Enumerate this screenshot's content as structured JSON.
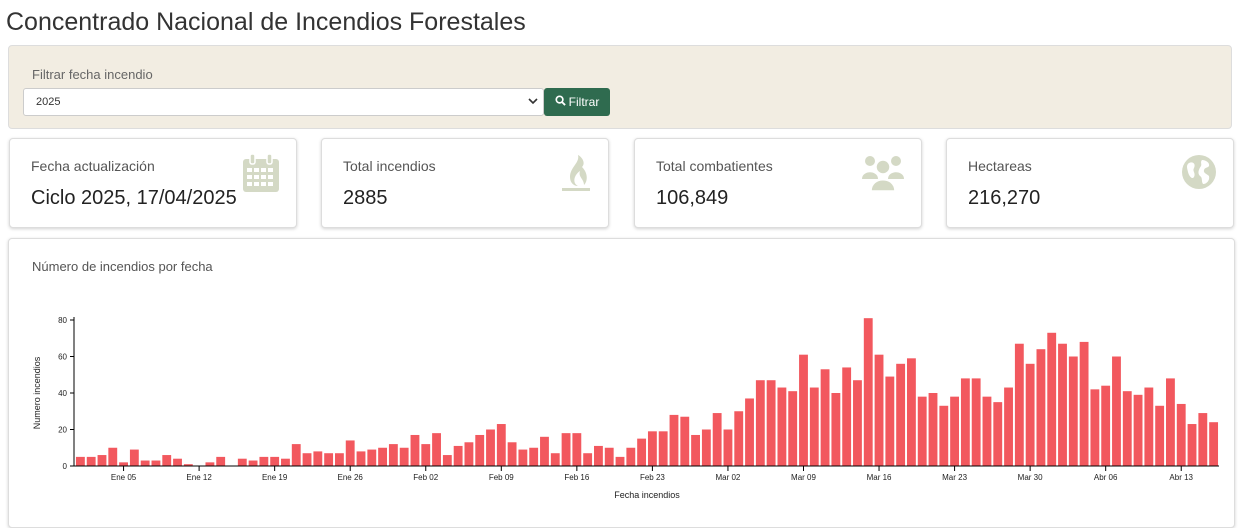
{
  "header": {
    "title": "Concentrado Nacional de Incendios Forestales"
  },
  "filter": {
    "label": "Filtrar fecha incendio",
    "selected_year": "2025",
    "button_label": "Filtrar"
  },
  "cards": [
    {
      "label": "Fecha actualización",
      "value": "Ciclo 2025, 17/04/2025",
      "icon": "calendar-icon"
    },
    {
      "label": "Total incendios",
      "value": "2885",
      "icon": "flame-icon"
    },
    {
      "label": "Total combatientes",
      "value": "106,849",
      "icon": "people-icon"
    },
    {
      "label": "Hectareas",
      "value": "216,270",
      "icon": "globe-icon"
    }
  ],
  "colors": {
    "bar": "#f2585e",
    "icon": "#d4d9c5",
    "button": "#2f6b4f",
    "panel": "#f2ede2"
  },
  "chart_title": "Número de incendios por fecha",
  "chart_data": {
    "type": "bar",
    "title": "Número de incendios por fecha",
    "xlabel": "Fecha incendios",
    "ylabel": "Numero incendios",
    "ylim": [
      0,
      80
    ],
    "yticks": [
      0,
      20,
      40,
      60,
      80
    ],
    "x_start": "2025-01-01",
    "x_tick_labels": [
      {
        "label": "Ene 05",
        "date": "2025-01-05"
      },
      {
        "label": "Ene 12",
        "date": "2025-01-12"
      },
      {
        "label": "Ene 19",
        "date": "2025-01-19"
      },
      {
        "label": "Ene 26",
        "date": "2025-01-26"
      },
      {
        "label": "Feb 02",
        "date": "2025-02-02"
      },
      {
        "label": "Feb 09",
        "date": "2025-02-09"
      },
      {
        "label": "Feb 16",
        "date": "2025-02-16"
      },
      {
        "label": "Feb 23",
        "date": "2025-02-23"
      },
      {
        "label": "Mar 02",
        "date": "2025-03-02"
      },
      {
        "label": "Mar 09",
        "date": "2025-03-09"
      },
      {
        "label": "Mar 16",
        "date": "2025-03-16"
      },
      {
        "label": "Mar 23",
        "date": "2025-03-23"
      },
      {
        "label": "Mar 30",
        "date": "2025-03-30"
      },
      {
        "label": "Abr 06",
        "date": "2025-04-06"
      },
      {
        "label": "Abr 13",
        "date": "2025-04-13"
      }
    ],
    "values": [
      5,
      5,
      6,
      10,
      2,
      9,
      3,
      3,
      6,
      4,
      1,
      0,
      2,
      5,
      0,
      4,
      3,
      5,
      5,
      4,
      12,
      7,
      8,
      7,
      7,
      14,
      8,
      9,
      10,
      12,
      10,
      17,
      12,
      18,
      6,
      11,
      13,
      17,
      20,
      23,
      13,
      9,
      10,
      16,
      7,
      18,
      18,
      7,
      11,
      10,
      5,
      10,
      15,
      19,
      19,
      28,
      27,
      17,
      20,
      29,
      20,
      30,
      37,
      47,
      47,
      43,
      41,
      61,
      43,
      53,
      40,
      54,
      47,
      81,
      61,
      49,
      56,
      59,
      38,
      40,
      33,
      38,
      48,
      48,
      38,
      35,
      43,
      67,
      56,
      64,
      73,
      67,
      60,
      68,
      42,
      44,
      60,
      41,
      39,
      43,
      33,
      48,
      34,
      23,
      29,
      24
    ]
  }
}
